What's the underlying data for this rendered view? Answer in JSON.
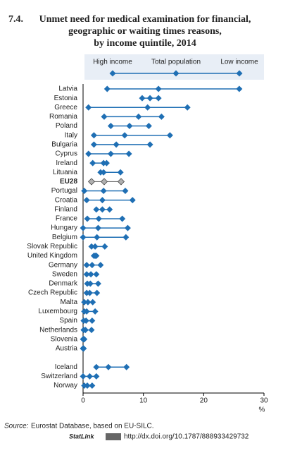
{
  "chart_data": {
    "type": "dot-range",
    "title_number": "7.4.",
    "title_lines": [
      "Unmet need for medical examination for financial,",
      "geographic or waiting times reasons,",
      "by income quintile, 2014"
    ],
    "categories": [
      "Latvia",
      "Estonia",
      "Greece",
      "Romania",
      "Poland",
      "Italy",
      "Bulgaria",
      "Cyprus",
      "Ireland",
      "Lituania",
      "EU28",
      "Portugal",
      "Croatia",
      "Finland",
      "France",
      "Hungary",
      "Belgium",
      "Slovak Republic",
      "United Kingdom",
      "Germany",
      "Sweden",
      "Denmark",
      "Czech Republic",
      "Malta",
      "Luxembourg",
      "Spain",
      "Netherlands",
      "Slovenia",
      "Austria",
      null,
      "Iceland",
      "Switzerland",
      "Norway"
    ],
    "highlight": "EU28",
    "series": [
      {
        "name": "High income",
        "color": "#1f6fb4",
        "values": [
          4.0,
          9.8,
          0.9,
          3.5,
          4.6,
          1.8,
          1.8,
          0.9,
          1.6,
          2.9,
          1.4,
          0.2,
          0.6,
          2.2,
          0.7,
          0,
          0,
          1.4,
          1.8,
          0.6,
          0.6,
          0.7,
          0.6,
          0.2,
          0.2,
          0.1,
          0.1,
          0,
          0,
          null,
          2.2,
          0,
          0.2
        ]
      },
      {
        "name": "Total population",
        "color": "#1f6fb4",
        "values": [
          12.5,
          11.1,
          10.7,
          9.2,
          7.7,
          6.9,
          5.5,
          4.6,
          3.4,
          3.4,
          3.5,
          3.4,
          3.2,
          3.2,
          2.6,
          2.5,
          2.3,
          2.0,
          2.0,
          1.5,
          1.3,
          1.2,
          1.1,
          0.8,
          0.6,
          0.5,
          0.4,
          0.1,
          0,
          null,
          4.2,
          1.1,
          0.7
        ]
      },
      {
        "name": "Low income",
        "color": "#1f6fb4",
        "values": [
          25.9,
          12.5,
          17.3,
          13.0,
          10.9,
          14.4,
          11.1,
          7.6,
          3.9,
          6.2,
          6.3,
          7.0,
          8.2,
          4.4,
          6.5,
          7.4,
          7.1,
          3.6,
          2.2,
          2.9,
          2.2,
          2.5,
          2.3,
          1.6,
          2.0,
          1.5,
          1.4,
          0.2,
          0.1,
          null,
          7.2,
          2.2,
          1.5
        ]
      }
    ],
    "highlight_color": "#b0b0b0",
    "xlim": [
      0,
      30
    ],
    "xticks": [
      0,
      10,
      20,
      30
    ],
    "x_label": "%",
    "source_label": "Source:",
    "source": "Eurostat Database, based on EU-SILC.",
    "statlink_label": "StatLink",
    "statlink": "http://dx.doi.org/10.1787/888933429732"
  }
}
